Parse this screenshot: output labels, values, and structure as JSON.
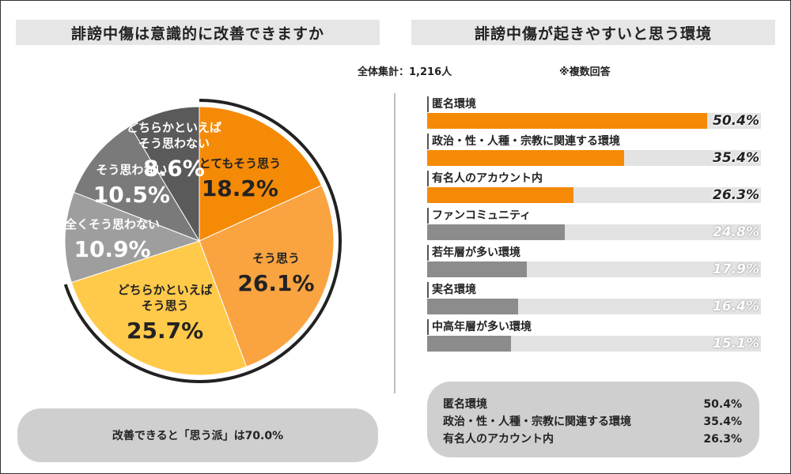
{
  "left_title": "誹謗中傷は意識的に改善できますか",
  "right_title": "誹謗中傷が起きやすいと思う環境",
  "total_label": "全体集計：1,216人",
  "multi_note": "※複数回答",
  "left_summary": "改善できると「思う派」は70.0%",
  "chart_data": [
    {
      "type": "pie",
      "title": "誹謗中傷は意識的に改善できますか",
      "categories": [
        "とてもそう思う",
        "そう思う",
        "どちらかといえばそう思う",
        "全くそう思わない",
        "そう思わない",
        "どちらかといえばそう思わない"
      ],
      "values": [
        18.2,
        26.1,
        25.7,
        10.9,
        10.5,
        8.6
      ],
      "value_labels": [
        "18.2%",
        "26.1%",
        "25.7%",
        "10.9%",
        "10.5%",
        "8.6%"
      ],
      "label_lines": [
        [
          "とてもそう思う"
        ],
        [
          "そう思う"
        ],
        [
          "どちらかといえば",
          "そう思う"
        ],
        [
          "全くそう思わない"
        ],
        [
          "そう思わない"
        ],
        [
          "どちらかといえば",
          "そう思わない"
        ]
      ],
      "colors": [
        "#f58a07",
        "#f9a441",
        "#ffc94a",
        "#9e9e9e",
        "#7a7a7a",
        "#5a5a5a"
      ]
    },
    {
      "type": "bar",
      "orientation": "horizontal",
      "title": "誹謗中傷が起きやすいと思う環境",
      "categories": [
        "匿名環境",
        "政治・性・人種・宗教に関連する環境",
        "有名人のアカウント内",
        "ファンコミュニティ",
        "若年層が多い環境",
        "実名環境",
        "中高年層が多い環境"
      ],
      "values": [
        50.4,
        35.4,
        26.3,
        24.8,
        17.9,
        16.4,
        15.1
      ],
      "value_labels": [
        "50.4%",
        "35.4%",
        "26.3%",
        "24.8%",
        "17.9%",
        "16.4%",
        "15.1%"
      ],
      "xlim": [
        0,
        60
      ],
      "colors": {
        "top3": "#f58a07",
        "rest": "#8c8c8c",
        "track": "#e3e3e3"
      }
    }
  ],
  "right_summary": [
    {
      "label": "匿名環境",
      "value": "50.4%"
    },
    {
      "label": "政治・性・人種・宗教に関連する環境",
      "value": "35.4%"
    },
    {
      "label": "有名人のアカウント内",
      "value": "26.3%"
    }
  ]
}
